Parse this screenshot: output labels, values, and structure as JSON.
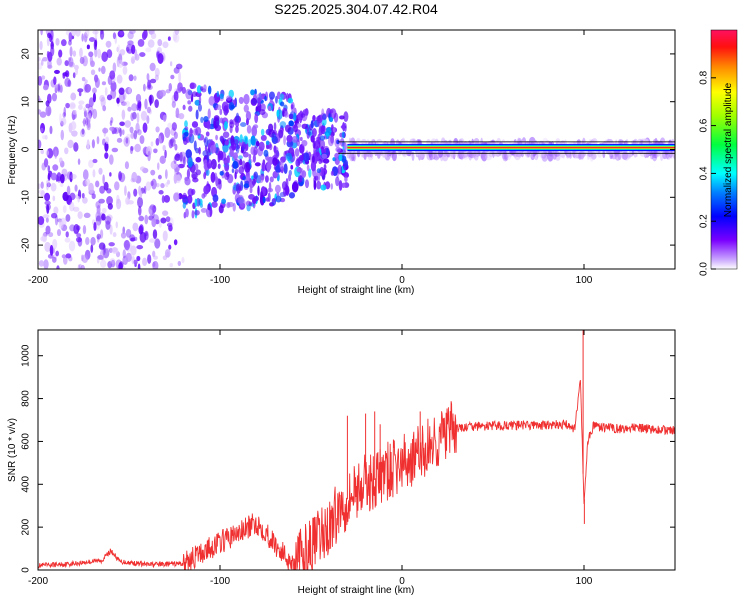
{
  "title": "S225.2025.304.07.42.R04",
  "colors": {
    "snr_line": "#f03030",
    "ridge": "#ff2020",
    "axis": "#000000"
  },
  "chart_data": [
    {
      "type": "heatmap",
      "xlabel": "Height of straight line (km)",
      "ylabel": "Frequency (Hz)",
      "xlim": [
        -200,
        150
      ],
      "ylim": [
        -25,
        25
      ],
      "x_ticks": [
        -200,
        -100,
        0,
        100
      ],
      "y_ticks": [
        -20,
        -10,
        0,
        10,
        20
      ],
      "colorbar": {
        "label": "Normalized spectral amplitude",
        "range": [
          0.0,
          1.0
        ],
        "ticks": [
          0.0,
          0.2,
          0.4,
          0.6,
          0.8
        ],
        "tick_labels": [
          "0.0",
          "0.2",
          "0.4",
          "0.6",
          "0.8"
        ],
        "colormap": "hsv"
      },
      "description_values": {
        "ridge_frequency_hz": 0.4,
        "ridge_start_km": -30,
        "ridge_end_km": 150
      }
    },
    {
      "type": "line",
      "xlabel": "Height of straight line (km)",
      "ylabel": "SNR (10 * v/v)",
      "xlim": [
        -200,
        150
      ],
      "ylim": [
        0,
        1120
      ],
      "x_ticks": [
        -200,
        -100,
        0,
        100
      ],
      "y_ticks": [
        0,
        200,
        400,
        600,
        800,
        1000
      ],
      "series": [
        {
          "x": [
            -200,
            -180,
            -165,
            -160,
            -155,
            -140,
            -120,
            -110,
            -100,
            -90,
            -80,
            -75,
            -70,
            -60,
            -55,
            -45,
            -40,
            -35,
            -30,
            -25,
            -20,
            -15,
            -10,
            -5,
            0,
            5,
            10,
            15,
            20,
            25,
            30,
            40,
            50,
            60,
            70,
            80,
            90,
            95,
            98,
            100,
            102,
            105,
            110,
            120,
            130,
            140,
            150
          ],
          "y": [
            20,
            30,
            45,
            90,
            40,
            25,
            30,
            80,
            130,
            170,
            220,
            180,
            120,
            30,
            60,
            150,
            200,
            280,
            330,
            380,
            400,
            420,
            450,
            470,
            490,
            520,
            540,
            580,
            610,
            640,
            660,
            670,
            672,
            675,
            676,
            675,
            680,
            660,
            900,
            300,
            600,
            670,
            665,
            660,
            662,
            655,
            650
          ]
        }
      ],
      "spikes": [
        {
          "x": -30,
          "y": 720
        },
        {
          "x": -20,
          "y": 730
        },
        {
          "x": -15,
          "y": 740
        },
        {
          "x": -12,
          "y": 680
        },
        {
          "x": 10,
          "y": 740
        },
        {
          "x": 99.5,
          "y": 1120
        },
        {
          "x": 100.2,
          "y": 215
        }
      ]
    }
  ]
}
